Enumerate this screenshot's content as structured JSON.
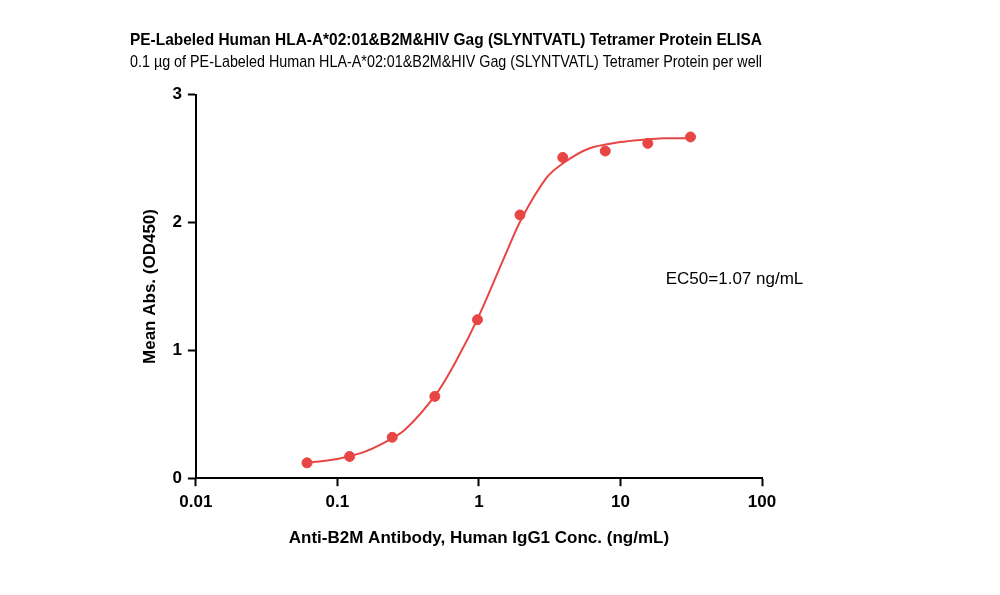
{
  "chart_data": {
    "type": "scatter",
    "title": "PE-Labeled Human HLA-A*02:01&B2M&HIV Gag (SLYNTVATL) Tetramer Protein ELISA",
    "subtitle": "0.1 µg of PE-Labeled Human HLA-A*02:01&B2M&HIV Gag (SLYNTVATL) Tetramer Protein per well",
    "x_label": "Anti-B2M Antibody, Human IgG1 Conc. (ng/mL)",
    "y_label": "Mean Abs. (OD450)",
    "annotation": "EC50=1.07 ng/mL",
    "log": "x",
    "grid": false,
    "xlim": [
      0.01,
      100
    ],
    "xticks": [
      0.01,
      0.1,
      1,
      10,
      100
    ],
    "ylim": [
      0,
      3
    ],
    "yticks": [
      0,
      1,
      2,
      3
    ],
    "series": [
      {
        "type": "scatter",
        "color": "#e84545",
        "marker": "circle",
        "x": [
          0.061,
          0.122,
          0.244,
          0.488,
          0.977,
          1.95,
          3.91,
          7.81,
          15.6,
          31.25
        ],
        "values": [
          0.12,
          0.17,
          0.32,
          0.64,
          1.24,
          2.06,
          2.51,
          2.56,
          2.62,
          2.67
        ]
      },
      {
        "type": "line",
        "color": "#e84545",
        "marker": "none",
        "line_style": "solid",
        "x": [
          0.061,
          0.1,
          0.15,
          0.2,
          0.3,
          0.5,
          0.7,
          1,
          1.5,
          2,
          3,
          4,
          6,
          10,
          15,
          20,
          31.25
        ],
        "values": [
          0.12,
          0.15,
          0.2,
          0.26,
          0.38,
          0.66,
          0.93,
          1.27,
          1.72,
          2.03,
          2.35,
          2.47,
          2.58,
          2.63,
          2.65,
          2.66,
          2.66
        ]
      }
    ]
  }
}
